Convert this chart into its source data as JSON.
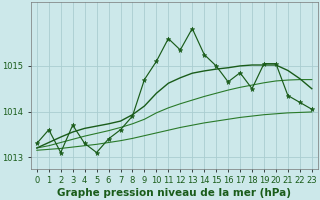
{
  "xlabel": "Graphe pression niveau de la mer (hPa)",
  "hours": [
    0,
    1,
    2,
    3,
    4,
    5,
    6,
    7,
    8,
    9,
    10,
    11,
    12,
    13,
    14,
    15,
    16,
    17,
    18,
    19,
    20,
    21,
    22,
    23
  ],
  "pressure": [
    1013.3,
    1013.6,
    1013.1,
    1013.7,
    1013.3,
    1013.1,
    1013.4,
    1013.6,
    1013.9,
    1014.7,
    1015.1,
    1015.6,
    1015.35,
    1015.82,
    1015.25,
    1015.0,
    1014.65,
    1014.85,
    1014.5,
    1015.05,
    1015.05,
    1014.35,
    1014.2,
    1014.05
  ],
  "smooth_low": [
    1013.15,
    1013.17,
    1013.19,
    1013.22,
    1013.25,
    1013.28,
    1013.32,
    1013.36,
    1013.41,
    1013.47,
    1013.53,
    1013.59,
    1013.65,
    1013.7,
    1013.75,
    1013.79,
    1013.83,
    1013.87,
    1013.9,
    1013.93,
    1013.95,
    1013.97,
    1013.98,
    1013.99
  ],
  "smooth_mid": [
    1013.2,
    1013.25,
    1013.32,
    1013.39,
    1013.46,
    1013.52,
    1013.58,
    1013.65,
    1013.73,
    1013.83,
    1013.97,
    1014.08,
    1014.17,
    1014.25,
    1014.33,
    1014.4,
    1014.47,
    1014.53,
    1014.58,
    1014.63,
    1014.67,
    1014.69,
    1014.7,
    1014.7
  ],
  "smooth_high": [
    1013.2,
    1013.32,
    1013.44,
    1013.55,
    1013.63,
    1013.68,
    1013.73,
    1013.79,
    1013.93,
    1014.12,
    1014.4,
    1014.62,
    1014.74,
    1014.84,
    1014.89,
    1014.93,
    1014.96,
    1015.0,
    1015.02,
    1015.02,
    1015.02,
    1014.9,
    1014.72,
    1014.5
  ],
  "bg_color": "#cce8ea",
  "grid_color": "#aacdd0",
  "line_color_dark": "#1a5c1a",
  "line_color_mid": "#2a7a2a",
  "marker": "*",
  "ylim": [
    1012.75,
    1016.4
  ],
  "yticks": [
    1013,
    1014,
    1015
  ],
  "xlabel_fontsize": 7.5,
  "tick_fontsize": 6.0
}
